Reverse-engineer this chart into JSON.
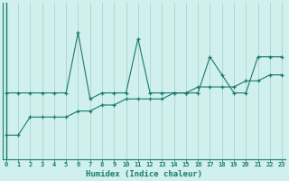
{
  "xlabel": "Humidex (Indice chaleur)",
  "x_values": [
    0,
    1,
    2,
    3,
    4,
    5,
    6,
    7,
    8,
    9,
    10,
    11,
    12,
    13,
    14,
    15,
    16,
    17,
    18,
    19,
    20,
    21,
    22,
    23
  ],
  "line1_y": [
    27.5,
    27.5,
    27.5,
    27.5,
    27.5,
    27.5,
    32.5,
    27.0,
    27.5,
    27.5,
    27.5,
    32.0,
    27.5,
    27.5,
    27.5,
    27.5,
    27.5,
    30.5,
    29.0,
    27.5,
    27.5,
    30.5,
    30.5,
    30.5
  ],
  "line2_y": [
    24.0,
    24.0,
    25.5,
    25.5,
    25.5,
    25.5,
    26.0,
    26.0,
    26.5,
    26.5,
    27.0,
    27.0,
    27.0,
    27.0,
    27.5,
    27.5,
    28.0,
    28.0,
    28.0,
    28.0,
    28.5,
    28.5,
    29.0,
    29.0
  ],
  "line_color": "#1a7a6e",
  "bg_color": "#cff0ec",
  "grid_color": "#b0d8d4",
  "ylim_min": 22.0,
  "ylim_max": 35.0,
  "xlim_min": -0.3,
  "xlim_max": 23.3
}
